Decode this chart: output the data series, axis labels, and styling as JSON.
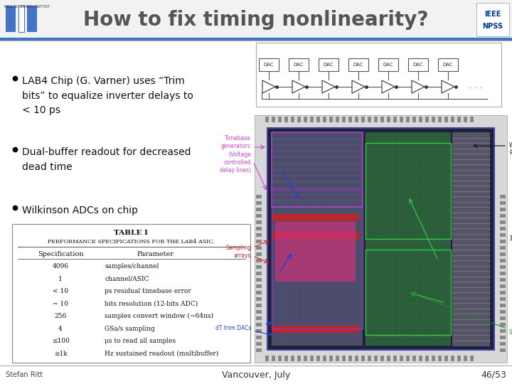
{
  "title": "How to fix timing nonlinearity?",
  "title_color": "#555555",
  "bullet_points": [
    "LAB4 Chip (G. Varner) uses “Trim\nbits” to equalize inverter delays to\n< 10 ps",
    "Dual-buffer readout for decreased\ndead time",
    "Wilkinson ADCs on chip"
  ],
  "footer_left": "Stefan Ritt",
  "footer_center": "Vancouver, July",
  "footer_right": "46/53",
  "table_title": "TABLE I",
  "table_subtitle": "PERFORMANCE SPECIFICATIONS FOR THE LAB4 ASIC.",
  "table_cols": [
    "Specification",
    "Parameter"
  ],
  "table_rows": [
    [
      "4096",
      "samples/channel"
    ],
    [
      "1",
      "channel/ASIC"
    ],
    [
      "< 10",
      "ps residual timebase error"
    ],
    [
      "~ 10",
      "bits resolution (12-bits ADC)"
    ],
    [
      "256",
      "samples convert window (~64ns)"
    ],
    [
      "4",
      "GSa/s sampling"
    ],
    [
      "≤100",
      "μs to read all samples"
    ],
    [
      "≥1k",
      "Hz sustained readout (multibuffer)"
    ]
  ],
  "header_bg": "#f2f2f2",
  "header_blue_line": "#4472c4",
  "header_gray_line": "#aaaaaa",
  "body_bg": "#ffffff",
  "chip_border_color": "#1a1a1a",
  "chip_bg": "#1c2333",
  "chip_inner_bg": "#2a2a3a",
  "chip_pad_color": "#666666",
  "chip_left_strip_color": "#4a3080",
  "chip_center_left_color": "#5a5a7a",
  "chip_center_right_color": "#3a6a4a",
  "chip_right_strip_color": "#3a3a7a",
  "chip_gray_strip_color": "#888899",
  "chip_red_row1": "#cc2222",
  "chip_red_row2": "#cc2222",
  "chip_pink_block": "#cc4466",
  "chip_blue_line": "#4444cc",
  "chip_purple_outline": "#aa44cc",
  "chip_green_outline": "#44cc44",
  "ann_left_color": "#cc44cc",
  "ann_sampling_color": "#cc2222",
  "ann_dT_color": "#2244cc",
  "ann_right_color": "#111111",
  "ann_green_color": "#228822",
  "dac_box_color": "#dddddd",
  "dac_text_color": "#333333",
  "dac_line_color": "#555555",
  "inverter_color": "#333333",
  "diag_bg": "#ffffff",
  "diag_border": "#aaaaaa"
}
